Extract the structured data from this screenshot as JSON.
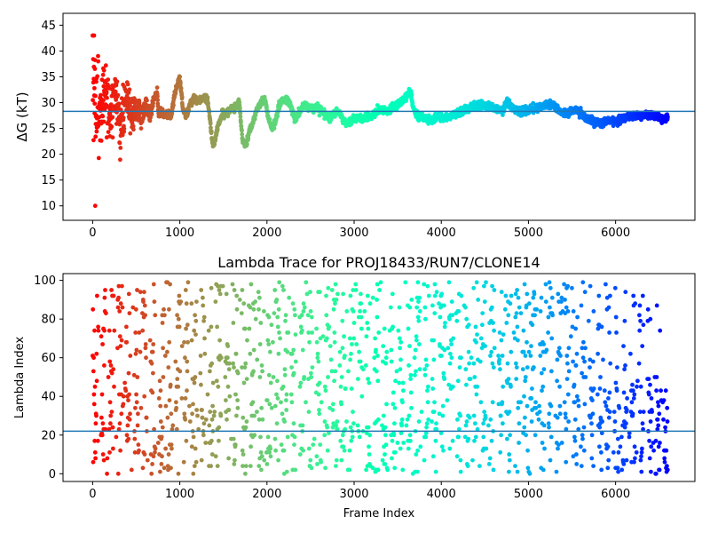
{
  "chart_data": [
    {
      "type": "scatter",
      "title": "",
      "xlabel": "",
      "ylabel": "ΔG (kT)",
      "xlim": [
        -340,
        6910
      ],
      "ylim": [
        7.2,
        47.3
      ],
      "xticks": [
        0,
        1000,
        2000,
        3000,
        4000,
        5000,
        6000
      ],
      "yticks": [
        10,
        15,
        20,
        25,
        30,
        35,
        40,
        45
      ],
      "hline": 28.3,
      "hline_color": "#1f77b4",
      "colormap": "rainbow (red → purple with increasing frame index)",
      "point_count": 6600,
      "trace_anchors": [
        [
          100,
          28.5
        ],
        [
          140,
          33.5
        ],
        [
          200,
          27.0
        ],
        [
          260,
          32.0
        ],
        [
          320,
          24.5
        ],
        [
          380,
          31.0
        ],
        [
          440,
          27.0
        ],
        [
          500,
          29.5
        ],
        [
          560,
          27.5
        ],
        [
          620,
          30.0
        ],
        [
          660,
          27.5
        ],
        [
          700,
          30.5
        ],
        [
          740,
          32.0
        ],
        [
          760,
          27.5
        ],
        [
          800,
          28.0
        ],
        [
          900,
          27.5
        ],
        [
          940,
          31.5
        ],
        [
          980,
          34.0
        ],
        [
          1000,
          35.0
        ],
        [
          1040,
          28.0
        ],
        [
          1080,
          27.5
        ],
        [
          1120,
          30.0
        ],
        [
          1170,
          31.0
        ],
        [
          1200,
          30.0
        ],
        [
          1280,
          31.0
        ],
        [
          1320,
          30.5
        ],
        [
          1350,
          26.0
        ],
        [
          1380,
          21.5
        ],
        [
          1400,
          22.5
        ],
        [
          1430,
          25.0
        ],
        [
          1480,
          27.5
        ],
        [
          1540,
          28.0
        ],
        [
          1600,
          29.0
        ],
        [
          1650,
          29.0
        ],
        [
          1680,
          30.5
        ],
        [
          1700,
          26.5
        ],
        [
          1720,
          22.5
        ],
        [
          1760,
          22.0
        ],
        [
          1800,
          24.5
        ],
        [
          1840,
          26.0
        ],
        [
          1880,
          28.5
        ],
        [
          1930,
          30.0
        ],
        [
          1980,
          30.5
        ],
        [
          2020,
          26.5
        ],
        [
          2060,
          25.0
        ],
        [
          2100,
          26.5
        ],
        [
          2140,
          29.5
        ],
        [
          2180,
          30.5
        ],
        [
          2240,
          30.5
        ],
        [
          2280,
          29.0
        ],
        [
          2320,
          26.5
        ],
        [
          2360,
          28.0
        ],
        [
          2420,
          29.5
        ],
        [
          2480,
          29.0
        ],
        [
          2560,
          29.0
        ],
        [
          2620,
          28.5
        ],
        [
          2680,
          27.5
        ],
        [
          2720,
          27.0
        ],
        [
          2780,
          28.0
        ],
        [
          2820,
          28.5
        ],
        [
          2860,
          27.0
        ],
        [
          2900,
          26.0
        ],
        [
          2960,
          26.5
        ],
        [
          3020,
          27.0
        ],
        [
          3100,
          27.0
        ],
        [
          3200,
          27.5
        ],
        [
          3300,
          28.5
        ],
        [
          3400,
          28.5
        ],
        [
          3500,
          29.5
        ],
        [
          3600,
          31.0
        ],
        [
          3650,
          32.0
        ],
        [
          3680,
          29.0
        ],
        [
          3720,
          27.5
        ],
        [
          3800,
          27.0
        ],
        [
          3880,
          26.5
        ],
        [
          3950,
          27.5
        ],
        [
          4020,
          27.0
        ],
        [
          4100,
          27.5
        ],
        [
          4200,
          28.0
        ],
        [
          4300,
          29.0
        ],
        [
          4400,
          29.5
        ],
        [
          4500,
          29.5
        ],
        [
          4600,
          29.0
        ],
        [
          4700,
          28.5
        ],
        [
          4760,
          30.5
        ],
        [
          4800,
          29.0
        ],
        [
          4900,
          28.5
        ],
        [
          5000,
          28.5
        ],
        [
          5100,
          29.0
        ],
        [
          5200,
          29.5
        ],
        [
          5300,
          29.5
        ],
        [
          5380,
          28.0
        ],
        [
          5450,
          28.0
        ],
        [
          5560,
          28.5
        ],
        [
          5650,
          27.0
        ],
        [
          5750,
          26.5
        ],
        [
          5820,
          26.0
        ],
        [
          5900,
          26.5
        ],
        [
          6000,
          26.5
        ],
        [
          6100,
          27.0
        ],
        [
          6200,
          27.5
        ],
        [
          6300,
          27.5
        ],
        [
          6420,
          27.5
        ],
        [
          6500,
          27.0
        ],
        [
          6600,
          27.0
        ]
      ]
    },
    {
      "type": "scatter",
      "title": "Lambda Trace for PROJ18433/RUN7/CLONE14",
      "xlabel": "Frame Index",
      "ylabel": "Lambda Index",
      "xlim": [
        -340,
        6910
      ],
      "ylim": [
        -4.0,
        103.5
      ],
      "xticks": [
        0,
        1000,
        2000,
        3000,
        4000,
        5000,
        6000
      ],
      "yticks": [
        0,
        20,
        40,
        60,
        80,
        100
      ],
      "hline": 22,
      "hline_color": "#1f77b4",
      "colormap": "rainbow (red → purple with increasing frame index)",
      "point_count": 6600,
      "value_range": [
        0,
        99
      ]
    }
  ]
}
